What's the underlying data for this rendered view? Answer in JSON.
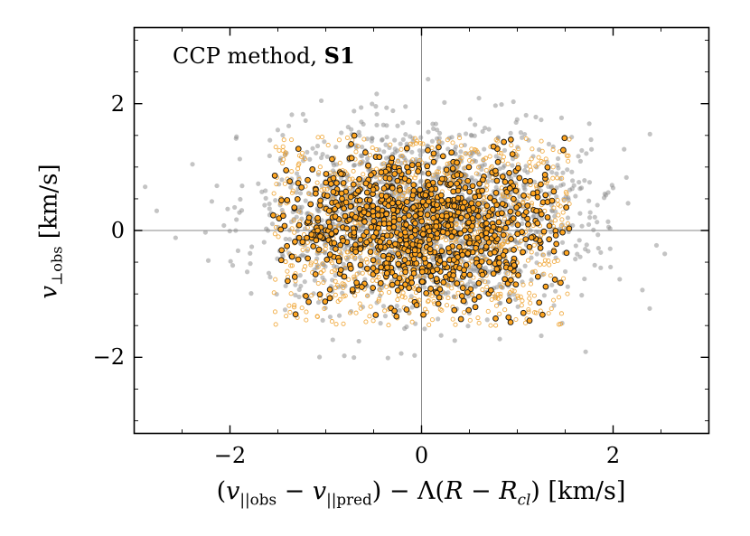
{
  "figure": {
    "background": "#ffffff",
    "annotation": {
      "prefix": "CCP method, ",
      "emphasis": "S1"
    },
    "x_axis": {
      "labeled_ticks": [
        -2,
        0,
        2
      ],
      "tick_labels": [
        "−2",
        "0",
        "2"
      ],
      "minor_ticks": [
        -2.5,
        -1.5,
        -1,
        -0.5,
        0.5,
        1,
        1.5,
        2.5
      ],
      "label_fragments": [
        {
          "text": "(",
          "style": "roman"
        },
        {
          "text": "v",
          "style": "italic"
        },
        {
          "text": "||obs",
          "style": "subscript"
        },
        {
          "text": " − ",
          "style": "roman"
        },
        {
          "text": "v",
          "style": "italic"
        },
        {
          "text": "||pred",
          "style": "subscript"
        },
        {
          "text": ") − Λ(",
          "style": "roman"
        },
        {
          "text": "R",
          "style": "italic"
        },
        {
          "text": " − ",
          "style": "roman"
        },
        {
          "text": "R",
          "style": "italic"
        },
        {
          "text": "cl",
          "style": "subscript-italic"
        },
        {
          "text": ") [km/s]",
          "style": "roman"
        }
      ]
    },
    "y_axis": {
      "labeled_ticks": [
        -2,
        0,
        2
      ],
      "tick_labels": [
        "−2",
        "0",
        "2"
      ],
      "minor_ticks": [
        -3,
        -2.5,
        -1.5,
        -1,
        -0.5,
        0.5,
        1,
        1.5,
        2.5,
        3
      ],
      "label_fragments": [
        {
          "text": "v",
          "style": "italic"
        },
        {
          "text": "⊥obs",
          "style": "subscript"
        },
        {
          "text": " [km/s]",
          "style": "roman"
        }
      ]
    }
  },
  "chart_data": {
    "type": "scatter",
    "annotation": "CCP method, S1",
    "xlabel": "(v||obs − v||pred) − Λ(R − Rcl) [km/s]",
    "ylabel": "v⊥obs [km/s]",
    "xlim": [
      -3,
      3
    ],
    "ylim": [
      -3.2,
      3.2
    ],
    "xticks": [
      -2,
      0,
      2
    ],
    "yticks": [
      -2,
      0,
      2
    ],
    "grid": false,
    "frame_color": "#000000",
    "reference_lines": {
      "vertical_x": 0,
      "horizontal_y": 0,
      "color": "#888888",
      "width": 1
    },
    "points_note": "Dense point clouds: individual coordinates estimated; regenerated from seeded distributions that match the visible clouds.",
    "series": [
      {
        "name": "background-gray",
        "marker": "filled-circle",
        "color": "#8a8a8a",
        "alpha": 0.5,
        "radius_px": 2.6,
        "n": 1500,
        "seed": 42,
        "distribution": {
          "kind": "gaussian",
          "mean": [
            0.0,
            0.25
          ],
          "sigma": [
            0.88,
            0.72
          ],
          "clip_x": [
            -2.9,
            2.9
          ],
          "clip_y": [
            -2.6,
            2.6
          ]
        }
      },
      {
        "name": "open-orange",
        "marker": "open-circle",
        "color": "#f0a432",
        "alpha": 0.9,
        "radius_px": 2.1,
        "stroke_px": 0.9,
        "n": 1050,
        "seed": 7,
        "distribution": {
          "kind": "gaussian-uniform-box",
          "uniform_weight": 0.5,
          "mean": [
            0.0,
            0.05
          ],
          "sigma": [
            0.8,
            0.7
          ],
          "box_x": [
            -1.55,
            1.55
          ],
          "box_y": [
            -1.5,
            1.5
          ]
        }
      },
      {
        "name": "filled-orange",
        "marker": "filled-circle-edged",
        "color": "#ffa51f",
        "edge_color": "#161616",
        "alpha": 1,
        "radius_px": 2.9,
        "stroke_px": 0.95,
        "n": 900,
        "seed": 99,
        "distribution": {
          "kind": "gaussian-box",
          "mean": [
            0.0,
            0.05
          ],
          "sigma": [
            0.78,
            0.62
          ],
          "box_x": [
            -1.55,
            1.55
          ],
          "box_y": [
            -1.5,
            1.5
          ]
        }
      }
    ]
  }
}
